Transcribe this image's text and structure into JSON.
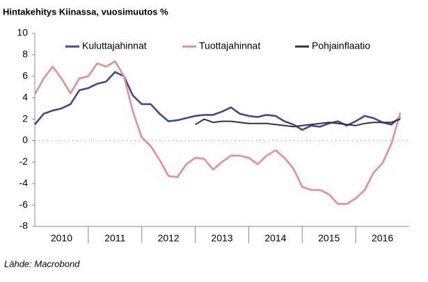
{
  "chart_data": {
    "type": "line",
    "title": "Hintakehitys Kiinassa, vuosimuutos %",
    "source": "Lähde: Macrobond",
    "x": [
      2010,
      2010.167,
      2010.333,
      2010.5,
      2010.667,
      2010.833,
      2011,
      2011.167,
      2011.333,
      2011.5,
      2011.667,
      2011.833,
      2012,
      2012.167,
      2012.333,
      2012.5,
      2012.667,
      2012.833,
      2013,
      2013.167,
      2013.333,
      2013.5,
      2013.667,
      2013.833,
      2014,
      2014.167,
      2014.333,
      2014.5,
      2014.667,
      2014.833,
      2015,
      2015.167,
      2015.333,
      2015.5,
      2015.667,
      2015.833,
      2016,
      2016.167,
      2016.333,
      2016.5,
      2016.667,
      2016.833
    ],
    "series": [
      {
        "name": "Kuluttajahinnat",
        "color": "#3b47a3",
        "values": [
          1.5,
          2.5,
          2.8,
          3.0,
          3.4,
          4.7,
          4.9,
          5.3,
          5.5,
          6.4,
          6.0,
          4.2,
          3.4,
          3.4,
          2.5,
          1.8,
          1.9,
          2.1,
          2.3,
          2.4,
          2.4,
          2.7,
          3.1,
          2.5,
          2.3,
          2.2,
          2.4,
          2.3,
          1.8,
          1.5,
          1.0,
          1.4,
          1.3,
          1.6,
          1.8,
          1.4,
          1.8,
          2.3,
          2.1,
          1.7,
          1.5,
          2.2
        ]
      },
      {
        "name": "Tuottajahinnat",
        "color": "#ef8b8b",
        "values": [
          4.3,
          5.8,
          6.9,
          5.8,
          4.4,
          5.8,
          6.0,
          7.2,
          6.9,
          7.4,
          6.0,
          2.7,
          0.3,
          -0.5,
          -1.8,
          -3.3,
          -3.4,
          -2.2,
          -1.6,
          -1.7,
          -2.7,
          -2.0,
          -1.4,
          -1.4,
          -1.6,
          -2.2,
          -1.4,
          -0.9,
          -1.6,
          -2.6,
          -4.3,
          -4.6,
          -4.6,
          -5.0,
          -5.9,
          -5.9,
          -5.4,
          -4.6,
          -3.0,
          -2.1,
          -0.3,
          2.6
        ]
      },
      {
        "name": "Pohjainflaatio",
        "color": "#333333",
        "values": [
          null,
          null,
          null,
          null,
          null,
          null,
          null,
          null,
          null,
          null,
          null,
          null,
          null,
          null,
          null,
          null,
          null,
          null,
          1.5,
          2.0,
          1.7,
          1.8,
          1.8,
          1.7,
          1.6,
          1.6,
          1.6,
          1.5,
          1.4,
          1.3,
          1.4,
          1.5,
          1.6,
          1.7,
          1.6,
          1.5,
          1.4,
          1.6,
          1.7,
          1.7,
          1.7,
          2.0
        ]
      }
    ],
    "xlim": [
      2010,
      2017
    ],
    "xticks": [
      2010,
      2011,
      2012,
      2013,
      2014,
      2015,
      2016
    ],
    "ylim": [
      -8,
      10
    ],
    "yticks": [
      -8,
      -6,
      -4,
      -2,
      0,
      2,
      4,
      6,
      8,
      10
    ]
  }
}
